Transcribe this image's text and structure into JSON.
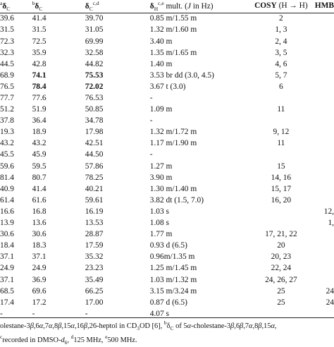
{
  "header": {
    "col1": {
      "pre": "a",
      "sym": "δ",
      "sub": "C"
    },
    "col2": {
      "pre": "b",
      "sym": "δ",
      "sub": "C"
    },
    "col3": {
      "sym": "δ",
      "sub": "C",
      "sup": "c,d"
    },
    "col4": {
      "sym": "δ",
      "sub": "H",
      "sup": "c,e",
      "rest_a": " mult. (",
      "j": "J",
      "rest_b": " in Hz)"
    },
    "col5": {
      "bold": "COSY",
      "rest": " (H → H)"
    },
    "col6": {
      "bold": "HMB"
    }
  },
  "rows": [
    [
      "39.6",
      "41.4",
      "39.70",
      "0.85 m/1.55 m",
      "2",
      ""
    ],
    [
      "31.5",
      "31.5",
      "31.05",
      "1.32 m/1.60 m",
      "1, 3",
      ""
    ],
    [
      "72.3",
      "72.5",
      "69.99",
      "3.40 m",
      "2, 4",
      ""
    ],
    [
      "32.3",
      "35.9",
      "32.58",
      "1.35 m/1.65 m",
      "3, 5",
      ""
    ],
    [
      "44.5",
      "42.8",
      "44.82",
      "1.40 m",
      "4, 6",
      ""
    ],
    [
      "68.9",
      "74.1",
      "75.53",
      "3.53 br dd (3.0, 4.5)",
      "5, 7",
      ""
    ],
    [
      "76.5",
      "78.4",
      "72.02",
      "3.67 t (3.0)",
      "6",
      ""
    ],
    [
      "77.7",
      "77.6",
      "76.53",
      "-",
      "",
      ""
    ],
    [
      "51.2",
      "51.9",
      "50.85",
      "1.09 m",
      "11",
      ""
    ],
    [
      "37.8",
      "36.4",
      "34.78",
      "-",
      "",
      ""
    ],
    [
      "19.3",
      "18.9",
      "17.98",
      "1.32 m/1.72 m",
      "9, 12",
      ""
    ],
    [
      "43.2",
      "43.2",
      "42.51",
      "1.17 m/1.90 m",
      "11",
      ""
    ],
    [
      "45.5",
      "45.9",
      "44.50",
      "-",
      "",
      ""
    ],
    [
      "59.6",
      "59.5",
      "57.86",
      "1.27 m",
      "15",
      ""
    ],
    [
      "81.4",
      "80.7",
      "78.25",
      "3.90 m",
      "14, 16",
      ""
    ],
    [
      "40.9",
      "41.4",
      "40.21",
      "1.30 m/1.40 m",
      "15, 17",
      ""
    ],
    [
      "61.4",
      "61.6",
      "59.61",
      "3.82 dt (1.5, 7.0)",
      "16, 20",
      ""
    ],
    [
      "16.6",
      "16.8",
      "16.19",
      "1.03 s",
      "",
      "12,"
    ],
    [
      "13.9",
      "13.6",
      "13.53",
      "1.08 s",
      "",
      "1,"
    ],
    [
      "30.6",
      "30.6",
      "28.87",
      "1.77 m",
      "17, 21, 22",
      ""
    ],
    [
      "18.4",
      "18.3",
      "17.59",
      "0.93 d (6.5)",
      "20",
      ""
    ],
    [
      "37.1",
      "37.1",
      "35.32",
      "0.96m/1.35 m",
      "20, 23",
      ""
    ],
    [
      "24.9",
      "24.9",
      "23.23",
      "1.25 m/1.45 m",
      "22, 24",
      ""
    ],
    [
      "37.1",
      "36.9",
      "35.49",
      "1.03 m/1.32 m",
      "24, 26, 27",
      ""
    ],
    [
      "68.5",
      "69.6",
      "66.25",
      "3.15 m/3.24 m",
      "25",
      "24"
    ],
    [
      "17.4",
      "17.2",
      "17.00",
      "0.87 d (6.5)",
      "25",
      "24"
    ],
    [
      "-",
      "-",
      "-",
      "4.07 s",
      "",
      ""
    ]
  ],
  "bold_cells": [
    [
      5,
      1
    ],
    [
      5,
      2
    ],
    [
      6,
      1
    ],
    [
      6,
      2
    ]
  ],
  "footnote": {
    "line1_a": "olestane-3",
    "beta": "β",
    "line1_b": ",6",
    "alpha": "α",
    "line1_c": ",7",
    "line1_d": ",8",
    "line1_e": ",15",
    "line1_f": ",16",
    "line1_g": ",26-heptol in CD",
    "line1_h": "OD [6], ",
    "line1_i": "δ",
    "line1_j": " of 5",
    "line1_k": "-cholestane-3",
    "line1_l": ",6",
    "line1_m": ",7",
    "line1_n": ",8",
    "line1_o": ",15",
    "line1_p": ",",
    "line2_a": "recorded in DMSO-",
    "line2_b": "d",
    "line2_c": "125 MHz, ",
    "line2_d": "500 MHz."
  }
}
